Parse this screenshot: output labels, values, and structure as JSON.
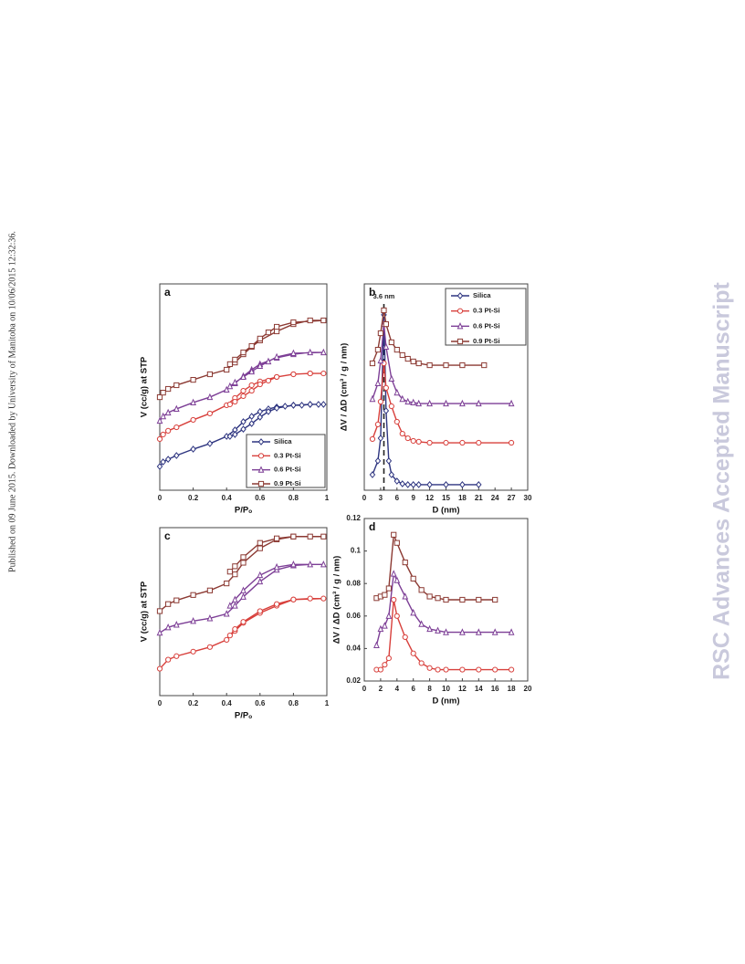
{
  "side_note": "Published on 09 June 2015. Downloaded by University of Manitoba on 10/06/2015 12:32:36.",
  "watermark": "RSC Advances Accepted Manuscript",
  "chart_data": [
    {
      "type": "line",
      "panel_label": "a",
      "x_label": "P/Pₒ",
      "y_label": "V (cc/g)  at STP",
      "xlim": [
        0,
        1
      ],
      "xticks": [
        0,
        0.2,
        0.4,
        0.6,
        0.8,
        1
      ],
      "ylim": [
        0,
        100
      ],
      "legend": "lower right",
      "series": [
        {
          "name": "Silica",
          "color": "#2e3580",
          "marker": "diamond",
          "x": [
            0,
            0.02,
            0.05,
            0.1,
            0.2,
            0.3,
            0.4,
            0.45,
            0.5,
            0.55,
            0.6,
            0.65,
            0.7,
            0.75,
            0.8,
            0.85,
            0.9,
            0.95,
            0.98,
            0.9,
            0.8,
            0.7,
            0.65,
            0.6,
            0.55,
            0.5,
            0.45,
            0.42
          ],
          "values": [
            11.5,
            13.7,
            15.0,
            16.8,
            19.9,
            22.6,
            26.1,
            29.2,
            33.2,
            35.8,
            38.1,
            39.4,
            40.3,
            40.7,
            41.2,
            41.2,
            41.6,
            41.6,
            41.6,
            41.6,
            41.2,
            39.8,
            38.1,
            35.4,
            32.3,
            29.6,
            27.0,
            26.1
          ]
        },
        {
          "name": "0.3 Pt-Si",
          "color": "#d8403c",
          "marker": "circle",
          "x": [
            0,
            0.02,
            0.05,
            0.1,
            0.2,
            0.3,
            0.4,
            0.45,
            0.5,
            0.55,
            0.6,
            0.7,
            0.8,
            0.9,
            0.98,
            0.9,
            0.8,
            0.7,
            0.65,
            0.6,
            0.55,
            0.5,
            0.45,
            0.42
          ],
          "values": [
            24.8,
            27.0,
            28.8,
            30.5,
            34.1,
            37.2,
            41.2,
            44.7,
            48.2,
            50.9,
            52.7,
            54.9,
            56.2,
            56.6,
            56.6,
            56.6,
            56.2,
            54.9,
            53.1,
            51.3,
            48.2,
            45.6,
            42.9,
            41.6
          ]
        },
        {
          "name": "0.6 Pt-Si",
          "color": "#7d3f96",
          "marker": "triangle",
          "x": [
            0,
            0.02,
            0.05,
            0.1,
            0.2,
            0.3,
            0.4,
            0.45,
            0.5,
            0.55,
            0.6,
            0.7,
            0.8,
            0.9,
            0.98,
            0.8,
            0.7,
            0.65,
            0.6,
            0.55,
            0.5,
            0.45,
            0.42
          ],
          "values": [
            33.6,
            35.8,
            37.6,
            39.4,
            42.5,
            45.1,
            48.7,
            51.8,
            55.3,
            58.4,
            61.1,
            64.2,
            65.9,
            66.8,
            66.8,
            66.4,
            64.6,
            62.4,
            60.2,
            57.5,
            54.9,
            52.2,
            50.4
          ]
        },
        {
          "name": "0.9 Pt-Si",
          "color": "#8c3a33",
          "marker": "square",
          "x": [
            0,
            0.02,
            0.05,
            0.1,
            0.2,
            0.3,
            0.4,
            0.45,
            0.5,
            0.55,
            0.6,
            0.7,
            0.8,
            0.9,
            0.98,
            0.8,
            0.7,
            0.65,
            0.6,
            0.55,
            0.5,
            0.45,
            0.42
          ],
          "values": [
            45.1,
            47.3,
            49.1,
            50.9,
            53.5,
            56.2,
            58.4,
            61.9,
            65.9,
            69.5,
            72.6,
            77.0,
            80.5,
            82.3,
            82.3,
            81.4,
            79.2,
            76.5,
            73.5,
            69.9,
            66.8,
            63.3,
            61.1
          ]
        }
      ]
    },
    {
      "type": "line",
      "panel_label": "b",
      "x_label": "D (nm)",
      "y_label": "ΔV / ΔD (cm³ / g / nm)",
      "annotation": "3.6 nm",
      "vline": 3.6,
      "xlim": [
        0,
        30
      ],
      "xticks": [
        0,
        3,
        6,
        9,
        12,
        15,
        18,
        21,
        24,
        27,
        30
      ],
      "ylim": [
        0,
        100
      ],
      "legend": "upper right",
      "series": [
        {
          "name": "Silica",
          "color": "#2e3580",
          "marker": "diamond",
          "x": [
            1.5,
            2.5,
            3,
            3.6,
            4,
            4.5,
            5,
            6,
            7,
            8,
            9,
            10,
            12,
            15,
            18,
            21
          ],
          "values": [
            7.5,
            14.2,
            25.2,
            85.0,
            38.5,
            14.2,
            7.5,
            4.4,
            3.1,
            2.7,
            2.7,
            2.7,
            2.7,
            2.7,
            2.7,
            2.7
          ]
        },
        {
          "name": "0.3 Pt-Si",
          "color": "#d8403c",
          "marker": "circle",
          "x": [
            1.5,
            2.5,
            3,
            3.6,
            4,
            5,
            6,
            7,
            8,
            9,
            10,
            12,
            15,
            18,
            21,
            27
          ],
          "values": [
            24.8,
            31.9,
            42.9,
            61.5,
            49.6,
            40.7,
            33.2,
            27.4,
            25.2,
            23.9,
            23.5,
            23.0,
            23.0,
            23.0,
            23.0,
            23.0
          ]
        },
        {
          "name": "0.6 Pt-Si",
          "color": "#7d3f96",
          "marker": "triangle",
          "x": [
            1.5,
            2.5,
            3,
            3.6,
            4,
            5,
            6,
            7,
            8,
            9,
            10,
            12,
            15,
            18,
            21,
            27
          ],
          "values": [
            44.2,
            51.8,
            62.8,
            80.5,
            69.5,
            54.0,
            47.3,
            44.2,
            42.9,
            42.5,
            42.0,
            42.0,
            42.0,
            42.0,
            42.0,
            42.0
          ]
        },
        {
          "name": "0.9 Pt-Si",
          "color": "#8c3a33",
          "marker": "square",
          "x": [
            1.5,
            2.5,
            3,
            3.6,
            4,
            5,
            6,
            7,
            8,
            9,
            10,
            12,
            15,
            18,
            22
          ],
          "values": [
            61.5,
            68.1,
            76.1,
            87.2,
            80.5,
            71.7,
            68.1,
            65.5,
            63.7,
            62.4,
            61.5,
            60.6,
            60.6,
            60.6,
            60.6
          ]
        }
      ]
    },
    {
      "type": "line",
      "panel_label": "c",
      "x_label": "P/Pₒ",
      "y_label": "V (cc/g)  at STP",
      "xlim": [
        0,
        1
      ],
      "xticks": [
        0,
        0.2,
        0.4,
        0.6,
        0.8,
        1
      ],
      "ylim": [
        0,
        100
      ],
      "series": [
        {
          "color": "#d8403c",
          "marker": "circle",
          "x": [
            0,
            0.05,
            0.1,
            0.2,
            0.3,
            0.4,
            0.45,
            0.5,
            0.6,
            0.7,
            0.8,
            0.9,
            0.98,
            0.8,
            0.7,
            0.6,
            0.5,
            0.45,
            0.42
          ],
          "values": [
            16.0,
            21.4,
            23.5,
            26.2,
            28.9,
            33.2,
            38.5,
            43.3,
            49.2,
            53.5,
            57.2,
            57.8,
            57.8,
            57.2,
            54.5,
            50.3,
            43.9,
            39.6,
            35.8
          ]
        },
        {
          "color": "#7d3f96",
          "marker": "triangle",
          "x": [
            0,
            0.05,
            0.1,
            0.2,
            0.3,
            0.4,
            0.45,
            0.5,
            0.6,
            0.7,
            0.8,
            0.9,
            0.98,
            0.8,
            0.7,
            0.6,
            0.5,
            0.45,
            0.42
          ],
          "values": [
            37.4,
            40.6,
            42.2,
            44.4,
            46.0,
            48.7,
            53.5,
            58.8,
            67.9,
            74.9,
            77.5,
            78.1,
            78.1,
            78.1,
            76.5,
            71.7,
            62.6,
            57.2,
            53.5
          ]
        },
        {
          "color": "#8c3a33",
          "marker": "square",
          "x": [
            0,
            0.05,
            0.1,
            0.2,
            0.3,
            0.4,
            0.45,
            0.5,
            0.6,
            0.7,
            0.8,
            0.9,
            0.98,
            0.8,
            0.7,
            0.6,
            0.5,
            0.45,
            0.42
          ],
          "values": [
            50.3,
            54.5,
            56.7,
            59.9,
            62.6,
            66.8,
            72.2,
            79.1,
            87.7,
            93.0,
            94.7,
            94.7,
            94.7,
            94.7,
            93.6,
            90.9,
            82.4,
            77.0,
            73.8
          ]
        }
      ]
    },
    {
      "type": "line",
      "panel_label": "d",
      "x_label": "D (nm)",
      "y_label": "ΔV / ΔD (cm³ / g / nm)",
      "xlim": [
        0,
        20
      ],
      "xticks": [
        0,
        2,
        4,
        6,
        8,
        10,
        12,
        14,
        16,
        18,
        20
      ],
      "ylim": [
        0.02,
        0.12
      ],
      "yticks": [
        0.02,
        0.04,
        0.06,
        0.08,
        0.1,
        0.12
      ],
      "series": [
        {
          "color": "#d8403c",
          "marker": "circle",
          "x": [
            1.5,
            2,
            2.5,
            3,
            3.6,
            4,
            5,
            6,
            7,
            8,
            9,
            10,
            12,
            14,
            16,
            18
          ],
          "values": [
            0.027,
            0.027,
            0.03,
            0.034,
            0.07,
            0.06,
            0.047,
            0.037,
            0.031,
            0.028,
            0.027,
            0.027,
            0.027,
            0.027,
            0.027,
            0.027
          ]
        },
        {
          "color": "#7d3f96",
          "marker": "triangle",
          "x": [
            1.5,
            2,
            2.5,
            3,
            3.6,
            4,
            5,
            6,
            7,
            8,
            9,
            10,
            12,
            14,
            16,
            18
          ],
          "values": [
            0.042,
            0.052,
            0.054,
            0.06,
            0.086,
            0.082,
            0.072,
            0.062,
            0.055,
            0.052,
            0.051,
            0.05,
            0.05,
            0.05,
            0.05,
            0.05
          ]
        },
        {
          "color": "#8c3a33",
          "marker": "square",
          "x": [
            1.5,
            2,
            2.5,
            3,
            3.6,
            4,
            5,
            6,
            7,
            8,
            9,
            10,
            12,
            14,
            16
          ],
          "values": [
            0.071,
            0.072,
            0.073,
            0.077,
            0.11,
            0.105,
            0.093,
            0.083,
            0.076,
            0.072,
            0.071,
            0.07,
            0.07,
            0.07,
            0.07
          ]
        }
      ]
    }
  ]
}
